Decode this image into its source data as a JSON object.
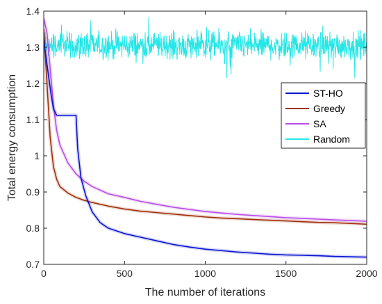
{
  "chart_data": {
    "type": "line",
    "title": "",
    "xlabel": "The number of iterations",
    "ylabel": "Total energy consumption",
    "xlim": [
      0,
      2000
    ],
    "ylim": [
      0.7,
      1.4
    ],
    "xticks": [
      0,
      500,
      1000,
      1500,
      2000
    ],
    "xtick_labels": [
      "0",
      "500",
      "1000",
      "1500",
      "2000"
    ],
    "yticks": [
      0.7,
      0.8,
      0.9,
      1.0,
      1.1,
      1.2,
      1.3,
      1.4
    ],
    "ytick_labels": [
      "0.7",
      "0.8",
      "0.9",
      "1",
      "1.1",
      "1.2",
      "1.3",
      "1.4"
    ],
    "grid": false,
    "legend": "right",
    "series": [
      {
        "name": "ST-HO",
        "color": "#0a14d2",
        "x": [
          0,
          15,
          30,
          45,
          60,
          80,
          100,
          150,
          200,
          210,
          230,
          260,
          300,
          350,
          400,
          500,
          600,
          700,
          800,
          900,
          1000,
          1100,
          1200,
          1300,
          1400,
          1500,
          1600,
          1700,
          1800,
          1900,
          2000
        ],
        "y": [
          1.32,
          1.27,
          1.22,
          1.17,
          1.13,
          1.112,
          1.112,
          1.112,
          1.112,
          1.02,
          0.94,
          0.89,
          0.845,
          0.815,
          0.8,
          0.785,
          0.775,
          0.765,
          0.755,
          0.748,
          0.742,
          0.738,
          0.734,
          0.731,
          0.728,
          0.726,
          0.725,
          0.724,
          0.722,
          0.721,
          0.72
        ]
      },
      {
        "name": "Greedy",
        "color": "#a1300d",
        "x": [
          0,
          20,
          40,
          60,
          80,
          100,
          150,
          200,
          250,
          300,
          400,
          500,
          600,
          700,
          800,
          900,
          1000,
          1100,
          1200,
          1300,
          1400,
          1500,
          1600,
          1700,
          1800,
          1900,
          2000
        ],
        "y": [
          1.35,
          1.2,
          1.05,
          0.97,
          0.935,
          0.915,
          0.897,
          0.885,
          0.877,
          0.871,
          0.861,
          0.853,
          0.847,
          0.843,
          0.839,
          0.835,
          0.831,
          0.828,
          0.826,
          0.824,
          0.822,
          0.82,
          0.818,
          0.816,
          0.815,
          0.813,
          0.811
        ]
      },
      {
        "name": "SA",
        "color": "#b84de6",
        "x": [
          0,
          20,
          40,
          60,
          80,
          100,
          150,
          200,
          250,
          300,
          400,
          500,
          600,
          700,
          800,
          900,
          1000,
          1100,
          1200,
          1300,
          1400,
          1500,
          1600,
          1700,
          1800,
          1900,
          2000
        ],
        "y": [
          1.38,
          1.34,
          1.24,
          1.14,
          1.07,
          1.03,
          0.98,
          0.95,
          0.93,
          0.915,
          0.895,
          0.885,
          0.874,
          0.866,
          0.858,
          0.852,
          0.846,
          0.842,
          0.838,
          0.835,
          0.832,
          0.829,
          0.827,
          0.825,
          0.823,
          0.821,
          0.819
        ]
      },
      {
        "name": "Random",
        "color": "#25e6e6",
        "mean": 1.305,
        "spread": 0.035,
        "x_range": [
          0,
          2000
        ]
      }
    ]
  }
}
